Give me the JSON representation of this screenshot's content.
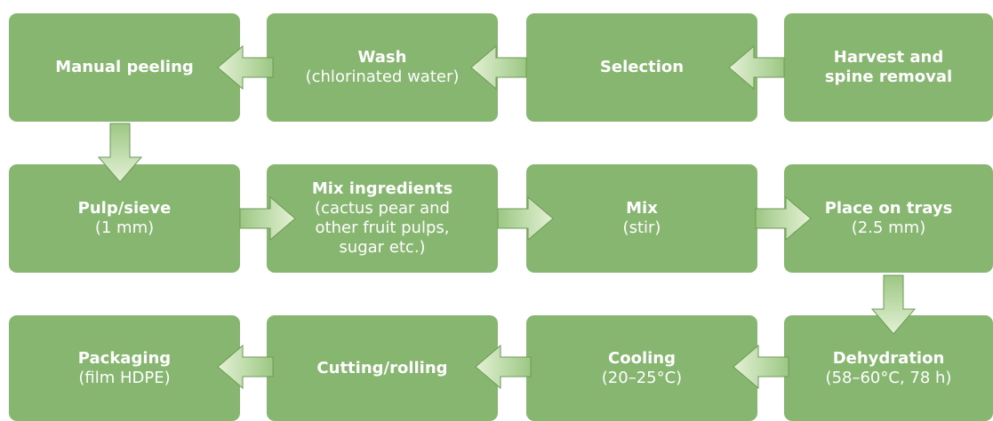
{
  "nodes": [
    {
      "title": "Manual peeling"
    },
    {
      "title": "Wash",
      "detail": "(chlorinated water)"
    },
    {
      "title": "Selection"
    },
    {
      "title": "Harvest and spine removal"
    },
    {
      "title": "Pulp/sieve",
      "detail": "(1 mm)"
    },
    {
      "title": "Mix ingredients",
      "detail": "(cactus pear and other fruit pulps, sugar etc.)"
    },
    {
      "title": "Mix",
      "detail": "(stir)"
    },
    {
      "title": "Place on trays",
      "detail": "(2.5 mm)"
    },
    {
      "title": "Packaging",
      "detail": "(film HDPE)"
    },
    {
      "title": "Cutting/rolling"
    },
    {
      "title": "Cooling",
      "detail": "(20–25°C)"
    },
    {
      "title": "Dehydration",
      "detail": "(58–60°C, 78 h)"
    }
  ]
}
